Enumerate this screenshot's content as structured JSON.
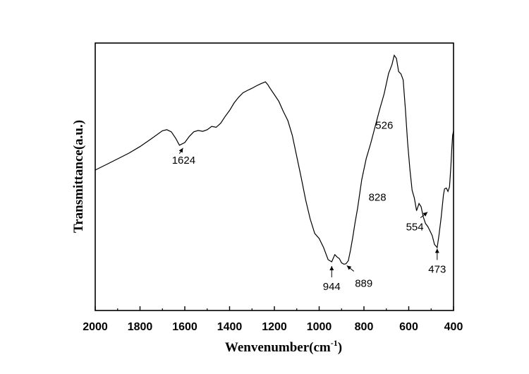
{
  "chart_data": {
    "type": "line",
    "title": "",
    "xlabel": "Wenvenumber(cm",
    "xlabel_sup": "-1",
    "xlabel_suffix": ")",
    "ylabel": "Transmittance(a.u.)",
    "x_reversed": true,
    "xlim": [
      2000,
      400
    ],
    "ylim": [
      0,
      100
    ],
    "x_ticks": [
      2000,
      1800,
      1600,
      1400,
      1200,
      1000,
      800,
      600,
      400
    ],
    "x_tick_labels": [
      "2000",
      "1800",
      "1600",
      "1400",
      "1200",
      "1000",
      "800",
      "600",
      "400"
    ],
    "grid": false,
    "line_color": "#000000",
    "series": [
      {
        "x": [
          2000,
          1950,
          1900,
          1850,
          1800,
          1750,
          1700,
          1680,
          1660,
          1640,
          1624,
          1600,
          1580,
          1560,
          1540,
          1520,
          1500,
          1480,
          1460,
          1440,
          1420,
          1400,
          1380,
          1360,
          1340,
          1320,
          1300,
          1280,
          1260,
          1240,
          1230,
          1220,
          1200,
          1180,
          1160,
          1140,
          1120,
          1100,
          1080,
          1060,
          1040,
          1020,
          1000,
          980,
          960,
          944,
          930,
          920,
          910,
          900,
          889,
          880,
          870,
          860,
          850,
          840,
          828,
          810,
          790,
          770,
          750,
          730,
          710,
          690,
          675,
          665,
          655,
          645,
          635,
          625,
          615,
          605,
          595,
          585,
          575,
          565,
          554,
          545,
          535,
          525,
          515,
          505,
          495,
          485,
          473,
          465,
          455,
          445,
          440,
          432,
          425,
          418,
          412,
          408,
          404,
          400
        ],
        "y": [
          52.5,
          54.6,
          56.7,
          58.8,
          61.3,
          64.2,
          67.2,
          67.6,
          66.8,
          64.3,
          61.8,
          62.8,
          65.1,
          66.8,
          67.3,
          67.0,
          67.6,
          68.8,
          68.5,
          70.0,
          72.5,
          74.8,
          77.6,
          79.7,
          81.4,
          82.3,
          83.1,
          84.0,
          84.8,
          85.5,
          84.5,
          83.2,
          80.7,
          78.2,
          74.4,
          71.0,
          65.5,
          57.5,
          49.6,
          41.3,
          34.2,
          28.8,
          26.9,
          23.5,
          19.0,
          18.2,
          20.9,
          20.0,
          19.4,
          17.8,
          17.3,
          17.5,
          18.6,
          22.5,
          27.3,
          32.7,
          38.4,
          48.8,
          56.8,
          62.4,
          68.8,
          75.1,
          81.0,
          88.6,
          91.9,
          95.4,
          94.3,
          89.3,
          88.5,
          86.2,
          75.5,
          62.8,
          52.9,
          44.9,
          42.1,
          37.3,
          40.0,
          38.8,
          35.0,
          32.5,
          31.4,
          29.7,
          28.0,
          24.7,
          23.5,
          28.2,
          34.9,
          43.2,
          45.5,
          45.8,
          44.5,
          46.2,
          53.6,
          60.4,
          65.4,
          67.2
        ]
      }
    ],
    "annotations": [
      {
        "label": "1624",
        "x": 1624,
        "y": 61.8,
        "arrow": "up-right"
      },
      {
        "label": "944",
        "x": 944,
        "y": 18.2,
        "arrow": "down"
      },
      {
        "label": "889",
        "x": 889,
        "y": 17.3,
        "arrow": "down-right"
      },
      {
        "label": "828",
        "x": 828,
        "y": 38.4,
        "arrow": "none"
      },
      {
        "label": "526",
        "x": 640,
        "y": 89,
        "arrow": "none"
      },
      {
        "label": "554",
        "x": 554,
        "y": 37.3,
        "arrow": "up-right"
      },
      {
        "label": "473",
        "x": 473,
        "y": 24.7,
        "arrow": "down"
      }
    ]
  }
}
